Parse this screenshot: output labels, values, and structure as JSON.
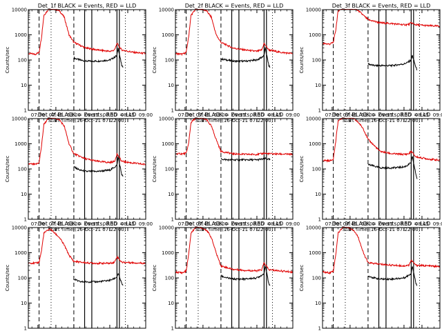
{
  "common": {
    "x_label": "Start Time (16-Oct-11 07:22:00)",
    "y_label": "Counts/sec",
    "x_ticks": [
      "07:30",
      "07:45",
      "08:00",
      "08:15",
      "08:30",
      "08:45",
      "09:00"
    ],
    "y_ticks": [
      "1",
      "10",
      "100",
      "1000",
      "10000"
    ],
    "colors": {
      "events": "#000000",
      "lld": "#e00000",
      "frame": "#000000"
    }
  },
  "chart_data": [
    {
      "type": "line",
      "title": "Det_1f BLACK = Events, RED = LLD",
      "ylim": [
        1,
        10000
      ],
      "xlim": [
        "07:22",
        "09:00"
      ],
      "dashed_lines": [
        "07:31",
        "08:00"
      ],
      "dotted_lines": [
        "07:41",
        "08:43"
      ],
      "solid_lines": [
        "08:09",
        "08:15",
        "08:36",
        "08:38"
      ],
      "series": [
        {
          "name": "Events",
          "color": "#000000",
          "x": [
            "08:00",
            "08:05",
            "08:10",
            "08:20",
            "08:30",
            "08:33",
            "08:36",
            "08:37",
            "08:40",
            "08:41"
          ],
          "y": [
            120,
            100,
            90,
            90,
            100,
            120,
            150,
            300,
            60,
            50
          ]
        },
        {
          "name": "LLD",
          "color": "#e00000",
          "x": [
            "07:22",
            "07:28",
            "07:31",
            "07:33",
            "07:35",
            "07:40",
            "07:48",
            "07:52",
            "07:56",
            "08:00",
            "08:10",
            "08:20",
            "08:30",
            "08:34",
            "08:36",
            "08:40",
            "08:50",
            "09:00"
          ],
          "y": [
            180,
            170,
            200,
            800,
            6000,
            12000,
            9000,
            5000,
            1000,
            500,
            300,
            250,
            220,
            250,
            450,
            250,
            200,
            180
          ]
        }
      ]
    },
    {
      "type": "line",
      "title": "Det_2f BLACK = Events, RED = LLD",
      "ylim": [
        1,
        10000
      ],
      "xlim": [
        "07:22",
        "09:00"
      ],
      "dashed_lines": [
        "07:31",
        "08:00"
      ],
      "dotted_lines": [
        "07:41",
        "08:43"
      ],
      "solid_lines": [
        "08:09",
        "08:15",
        "08:36",
        "08:38"
      ],
      "series": [
        {
          "name": "Events",
          "color": "#000000",
          "x": [
            "08:00",
            "08:05",
            "08:10",
            "08:20",
            "08:30",
            "08:33",
            "08:36",
            "08:37",
            "08:40",
            "08:41"
          ],
          "y": [
            110,
            100,
            90,
            90,
            100,
            120,
            150,
            300,
            60,
            50
          ]
        },
        {
          "name": "LLD",
          "color": "#e00000",
          "x": [
            "07:22",
            "07:28",
            "07:31",
            "07:33",
            "07:35",
            "07:40",
            "07:48",
            "07:52",
            "07:56",
            "08:00",
            "08:10",
            "08:20",
            "08:30",
            "08:34",
            "08:36",
            "08:40",
            "08:50",
            "09:00"
          ],
          "y": [
            180,
            170,
            200,
            800,
            6000,
            12000,
            9000,
            5000,
            1000,
            500,
            300,
            250,
            220,
            250,
            450,
            250,
            200,
            180
          ]
        }
      ]
    },
    {
      "type": "line",
      "title": "Det_3f BLACK = Events, RED = LLD",
      "ylim": [
        1,
        10000
      ],
      "xlim": [
        "07:22",
        "09:00"
      ],
      "dashed_lines": [
        "07:31",
        "08:00"
      ],
      "dotted_lines": [
        "07:41",
        "08:43"
      ],
      "solid_lines": [
        "08:09",
        "08:15",
        "08:36",
        "08:38"
      ],
      "series": [
        {
          "name": "Events",
          "color": "#000000",
          "x": [
            "08:00",
            "08:05",
            "08:10",
            "08:20",
            "08:30",
            "08:33",
            "08:36",
            "08:37",
            "08:40",
            "08:41"
          ],
          "y": [
            70,
            60,
            60,
            60,
            70,
            80,
            100,
            150,
            50,
            40
          ]
        },
        {
          "name": "LLD",
          "color": "#e00000",
          "x": [
            "07:22",
            "07:28",
            "07:31",
            "07:33",
            "07:35",
            "07:40",
            "07:48",
            "07:52",
            "07:56",
            "08:00",
            "08:10",
            "08:20",
            "08:30",
            "08:34",
            "08:36",
            "08:40",
            "08:50",
            "09:00"
          ],
          "y": [
            450,
            430,
            500,
            1500,
            9000,
            12000,
            11000,
            9000,
            6000,
            4000,
            3000,
            2800,
            2500,
            2600,
            3000,
            2500,
            2300,
            2200
          ]
        }
      ]
    },
    {
      "type": "line",
      "title": "Det_4f BLACK = Events, RED = LLD",
      "ylim": [
        1,
        10000
      ],
      "xlim": [
        "07:22",
        "09:00"
      ],
      "dashed_lines": [
        "07:31",
        "08:00"
      ],
      "dotted_lines": [
        "07:41",
        "08:43"
      ],
      "solid_lines": [
        "08:09",
        "08:15",
        "08:36",
        "08:38"
      ],
      "series": [
        {
          "name": "Events",
          "color": "#000000",
          "x": [
            "08:00",
            "08:05",
            "08:10",
            "08:20",
            "08:30",
            "08:33",
            "08:36",
            "08:37",
            "08:40",
            "08:41"
          ],
          "y": [
            120,
            90,
            80,
            80,
            90,
            110,
            140,
            300,
            60,
            50
          ]
        },
        {
          "name": "LLD",
          "color": "#e00000",
          "x": [
            "07:22",
            "07:28",
            "07:31",
            "07:33",
            "07:35",
            "07:40",
            "07:48",
            "07:52",
            "07:56",
            "08:00",
            "08:10",
            "08:20",
            "08:30",
            "08:34",
            "08:36",
            "08:40",
            "08:50",
            "09:00"
          ],
          "y": [
            160,
            150,
            180,
            800,
            6000,
            12000,
            9000,
            5000,
            1000,
            400,
            250,
            200,
            180,
            200,
            400,
            200,
            170,
            150
          ]
        }
      ]
    },
    {
      "type": "line",
      "title": "Det_5f BLACK = Events, RED = LLD",
      "ylim": [
        1,
        10000
      ],
      "xlim": [
        "07:22",
        "09:00"
      ],
      "dashed_lines": [
        "07:31",
        "08:00"
      ],
      "dotted_lines": [
        "07:41",
        "08:43"
      ],
      "solid_lines": [
        "08:09",
        "08:15",
        "08:36",
        "08:38"
      ],
      "series": [
        {
          "name": "Events",
          "color": "#000000",
          "x": [
            "08:00",
            "08:05",
            "08:10",
            "08:20",
            "08:30",
            "08:33",
            "08:36",
            "08:37",
            "08:40",
            "08:41"
          ],
          "y": [
            250,
            230,
            230,
            230,
            230,
            240,
            250,
            260,
            240,
            230
          ]
        },
        {
          "name": "LLD",
          "color": "#e00000",
          "x": [
            "07:22",
            "07:28",
            "07:31",
            "07:33",
            "07:35",
            "07:40",
            "07:48",
            "07:52",
            "07:56",
            "08:00",
            "08:10",
            "08:20",
            "08:30",
            "08:34",
            "08:36",
            "08:40",
            "08:50",
            "09:00"
          ],
          "y": [
            400,
            400,
            420,
            1000,
            7000,
            12000,
            9000,
            5000,
            1500,
            500,
            400,
            380,
            380,
            400,
            420,
            400,
            390,
            380
          ]
        }
      ]
    },
    {
      "type": "line",
      "title": "Det_6f BLACK = Events, RED = LLD",
      "ylim": [
        1,
        10000
      ],
      "xlim": [
        "07:22",
        "09:00"
      ],
      "dashed_lines": [
        "07:31",
        "08:00"
      ],
      "dotted_lines": [
        "07:41",
        "08:43"
      ],
      "solid_lines": [
        "08:09",
        "08:15",
        "08:36",
        "08:38"
      ],
      "series": [
        {
          "name": "Events",
          "color": "#000000",
          "x": [
            "08:00",
            "08:05",
            "08:10",
            "08:20",
            "08:30",
            "08:33",
            "08:36",
            "08:37",
            "08:40",
            "08:41"
          ],
          "y": [
            150,
            130,
            110,
            110,
            120,
            140,
            180,
            300,
            60,
            40
          ]
        },
        {
          "name": "LLD",
          "color": "#e00000",
          "x": [
            "07:22",
            "07:28",
            "07:31",
            "07:33",
            "07:35",
            "07:40",
            "07:48",
            "07:52",
            "07:56",
            "08:00",
            "08:10",
            "08:20",
            "08:30",
            "08:34",
            "08:36",
            "08:40",
            "08:50",
            "09:00"
          ],
          "y": [
            220,
            210,
            250,
            1200,
            8000,
            12000,
            10000,
            7000,
            4000,
            1500,
            500,
            400,
            380,
            400,
            500,
            300,
            250,
            220
          ]
        }
      ]
    },
    {
      "type": "line",
      "title": "Det_7f BLACK = Events, RED = LLD",
      "ylim": [
        1,
        10000
      ],
      "xlim": [
        "07:22",
        "09:00"
      ],
      "dashed_lines": [
        "07:31",
        "08:00"
      ],
      "dotted_lines": [
        "07:41",
        "08:43"
      ],
      "solid_lines": [
        "08:09",
        "08:15",
        "08:36",
        "08:38"
      ],
      "series": [
        {
          "name": "Events",
          "color": "#000000",
          "x": [
            "08:00",
            "08:05",
            "08:10",
            "08:20",
            "08:30",
            "08:33",
            "08:36",
            "08:37",
            "08:40",
            "08:41"
          ],
          "y": [
            90,
            70,
            70,
            70,
            80,
            90,
            110,
            150,
            60,
            50
          ]
        },
        {
          "name": "LLD",
          "color": "#e00000",
          "x": [
            "07:22",
            "07:28",
            "07:31",
            "07:33",
            "07:35",
            "07:40",
            "07:48",
            "07:52",
            "07:56",
            "08:00",
            "08:10",
            "08:20",
            "08:30",
            "08:34",
            "08:36",
            "08:40",
            "08:50",
            "09:00"
          ],
          "y": [
            400,
            380,
            420,
            1200,
            6000,
            9000,
            4000,
            2000,
            800,
            450,
            400,
            380,
            380,
            420,
            700,
            420,
            400,
            380
          ]
        }
      ]
    },
    {
      "type": "line",
      "title": "Det_8f BLACK = Events, RED = LLD",
      "ylim": [
        1,
        10000
      ],
      "xlim": [
        "07:22",
        "09:00"
      ],
      "dashed_lines": [
        "07:31",
        "08:00"
      ],
      "dotted_lines": [
        "07:41",
        "08:43"
      ],
      "solid_lines": [
        "08:09",
        "08:15",
        "08:36",
        "08:38"
      ],
      "series": [
        {
          "name": "Events",
          "color": "#000000",
          "x": [
            "08:00",
            "08:05",
            "08:10",
            "08:20",
            "08:30",
            "08:33",
            "08:36",
            "08:37",
            "08:40",
            "08:41"
          ],
          "y": [
            120,
            100,
            90,
            90,
            100,
            120,
            150,
            300,
            60,
            50
          ]
        },
        {
          "name": "LLD",
          "color": "#e00000",
          "x": [
            "07:22",
            "07:28",
            "07:31",
            "07:33",
            "07:35",
            "07:40",
            "07:48",
            "07:52",
            "07:56",
            "08:00",
            "08:10",
            "08:20",
            "08:30",
            "08:34",
            "08:36",
            "08:40",
            "08:50",
            "09:00"
          ],
          "y": [
            170,
            160,
            190,
            800,
            6000,
            12000,
            8000,
            4000,
            1000,
            300,
            220,
            200,
            190,
            210,
            400,
            210,
            190,
            170
          ]
        }
      ]
    },
    {
      "type": "line",
      "title": "Det_9f BLACK = Events, RED = LLD",
      "ylim": [
        1,
        10000
      ],
      "xlim": [
        "07:22",
        "09:00"
      ],
      "dashed_lines": [
        "07:31",
        "08:00"
      ],
      "dotted_lines": [
        "07:41",
        "08:43"
      ],
      "solid_lines": [
        "08:09",
        "08:15",
        "08:36",
        "08:38"
      ],
      "series": [
        {
          "name": "Events",
          "color": "#000000",
          "x": [
            "08:00",
            "08:05",
            "08:10",
            "08:20",
            "08:30",
            "08:33",
            "08:36",
            "08:37",
            "08:40",
            "08:41"
          ],
          "y": [
            120,
            100,
            90,
            90,
            100,
            120,
            150,
            300,
            60,
            50
          ]
        },
        {
          "name": "LLD",
          "color": "#e00000",
          "x": [
            "07:22",
            "07:28",
            "07:31",
            "07:33",
            "07:35",
            "07:40",
            "07:48",
            "07:52",
            "07:56",
            "08:00",
            "08:10",
            "08:20",
            "08:30",
            "08:34",
            "08:36",
            "08:40",
            "08:50",
            "09:00"
          ],
          "y": [
            170,
            160,
            190,
            800,
            6000,
            12000,
            8000,
            4000,
            1000,
            400,
            350,
            320,
            300,
            320,
            500,
            320,
            300,
            280
          ]
        }
      ]
    }
  ]
}
